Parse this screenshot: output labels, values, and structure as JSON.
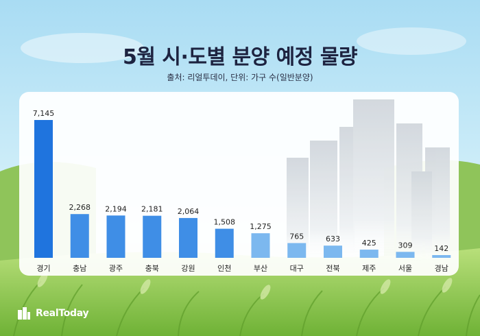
{
  "title": "5월 시·도별 분양 예정 물량",
  "source": "출처: 리얼투데이, 단위: 가구 수(일반분양)",
  "brand": "RealToday",
  "colors": {
    "bar_top": "#1f74de",
    "bar_mid": "#3f8ee6",
    "bar_light": "#7cb8ef",
    "text": "#222222"
  },
  "chart_data": {
    "type": "bar",
    "title": "5월 시·도별 분양 예정 물량",
    "categories": [
      "경기",
      "충남",
      "광주",
      "충북",
      "강원",
      "인천",
      "부산",
      "대구",
      "전북",
      "제주",
      "서울",
      "경남"
    ],
    "values": [
      7145,
      2268,
      2194,
      2181,
      2064,
      1508,
      1275,
      765,
      633,
      425,
      309,
      142
    ],
    "value_labels": [
      "7,145",
      "2,268",
      "2,194",
      "2,181",
      "2,064",
      "1,508",
      "1,275",
      "765",
      "633",
      "425",
      "309",
      "142"
    ],
    "xlabel": "",
    "ylabel": "",
    "ylim": [
      0,
      7145
    ],
    "grid": false,
    "legend": "none"
  }
}
